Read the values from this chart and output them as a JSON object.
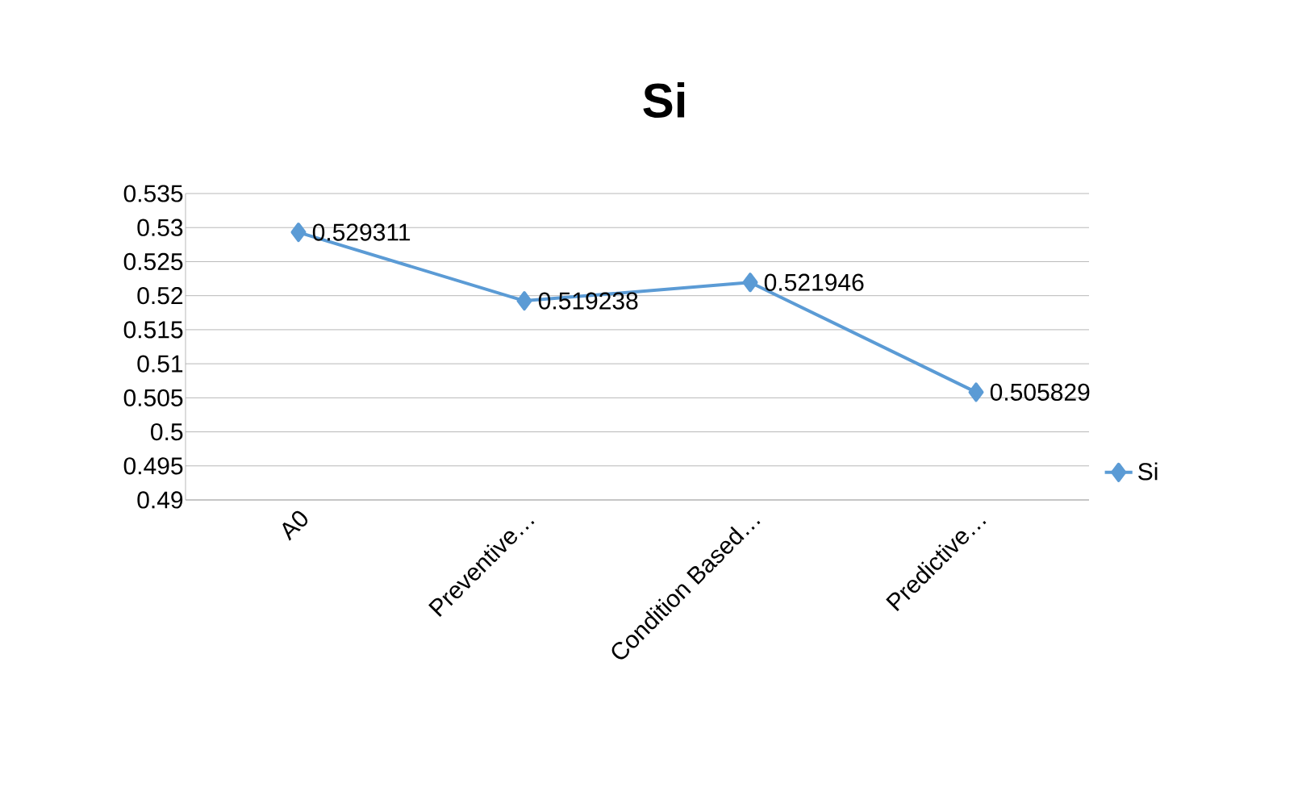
{
  "chart_data": {
    "type": "line",
    "title": "Si",
    "categories": [
      "A0",
      "Preventive…",
      "Condition Based…",
      "Predictive…"
    ],
    "series": [
      {
        "name": "Si",
        "color": "#5b9bd5",
        "values": [
          0.529311,
          0.519238,
          0.521946,
          0.505829
        ]
      }
    ],
    "ylim": [
      0.49,
      0.535
    ],
    "yticks": [
      0.49,
      0.495,
      0.5,
      0.505,
      0.51,
      0.515,
      0.52,
      0.525,
      0.53,
      0.535
    ],
    "grid": "y",
    "legend": "right",
    "marker": "diamond",
    "line_style": "solid",
    "data_labels": true
  }
}
